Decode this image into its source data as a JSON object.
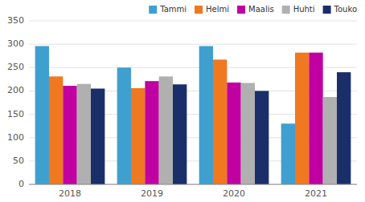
{
  "chart_data": {
    "type": "bar",
    "categories": [
      "2018",
      "2019",
      "2020",
      "2021"
    ],
    "series": [
      {
        "name": "Tammi",
        "color": "#3fa0d0",
        "values": [
          296,
          250,
          296,
          130
        ]
      },
      {
        "name": "Helmi",
        "color": "#f07820",
        "values": [
          231,
          206,
          267,
          282
        ]
      },
      {
        "name": "Maalis",
        "color": "#c000a0",
        "values": [
          211,
          221,
          218,
          282
        ]
      },
      {
        "name": "Huhti",
        "color": "#b0b0b0",
        "values": [
          215,
          231,
          217,
          187
        ]
      },
      {
        "name": "Touko",
        "color": "#1a2f6a",
        "values": [
          205,
          214,
          200,
          240
        ]
      }
    ],
    "ylim": [
      0,
      350
    ],
    "yticks": [
      0,
      50,
      100,
      150,
      200,
      250,
      300,
      350
    ],
    "grid": true,
    "legend": "upper right"
  }
}
